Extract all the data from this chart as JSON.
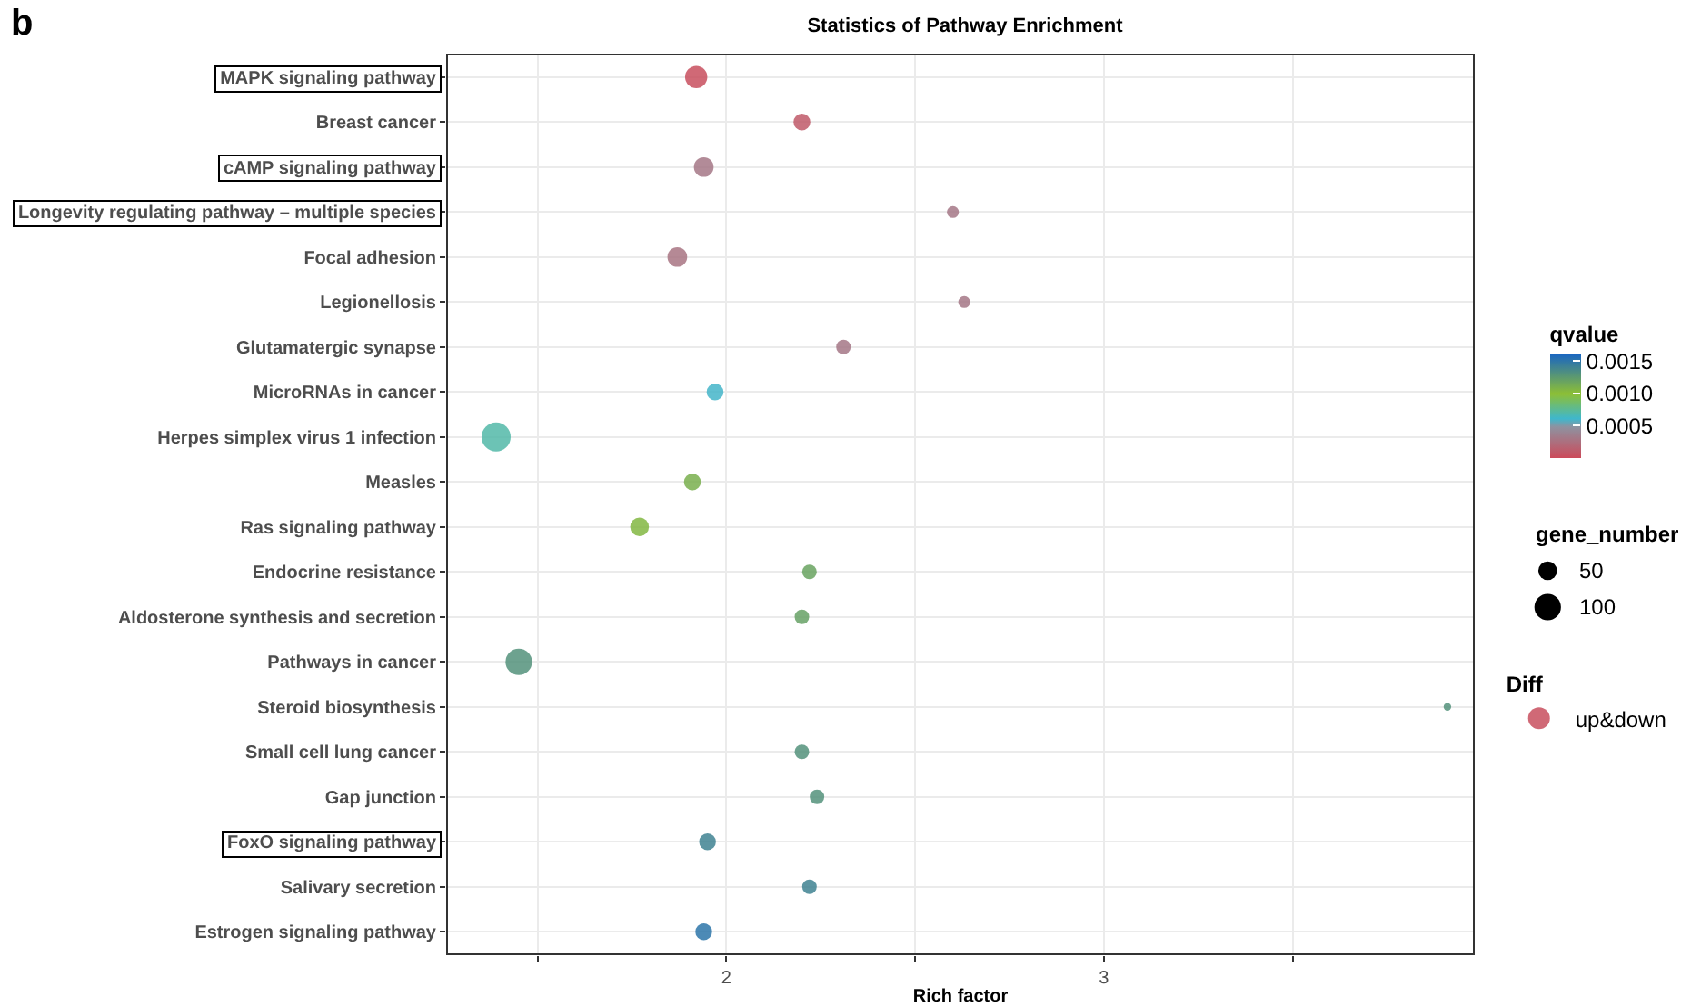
{
  "chart_data": {
    "type": "bubble",
    "orientation": "horizontal",
    "title": "Statistics of Pathway Enrichment",
    "xlabel": "Rich factor",
    "clabel": "qvalue",
    "legend_title": "Diff",
    "annotations": [
      "b",
      "gene_number"
    ],
    "categories": [
      "MAPK signaling pathway",
      "Breast cancer",
      "cAMP signaling pathway",
      "Longevity regulating pathway – multiple species",
      "Focal adhesion",
      "Legionellosis",
      "Glutamatergic synapse",
      "MicroRNAs in cancer",
      "Herpes simplex virus 1 infection",
      "Measles",
      "Ras signaling pathway",
      "Endocrine resistance",
      "Aldosterone synthesis and secretion",
      "Pathways in cancer",
      "Steroid biosynthesis",
      "Small cell lung cancer",
      "Gap junction",
      "FoxO signaling pathway",
      "Salivary secretion",
      "Estrogen signaling pathway"
    ],
    "series": [
      {
        "name": "up&down",
        "values": [
          1.92,
          2.2,
          1.94,
          2.6,
          1.87,
          2.63,
          2.31,
          1.97,
          1.39,
          1.91,
          1.77,
          2.22,
          2.2,
          1.45,
          3.91,
          2.2,
          2.24,
          1.95,
          2.22,
          1.94
        ],
        "sizes": [
          70,
          40,
          55,
          20,
          55,
          20,
          30,
          40,
          120,
          40,
          50,
          30,
          30,
          100,
          8,
          30,
          30,
          40,
          30,
          40
        ],
        "cvalues": [
          3e-05,
          0.0001,
          0.0003,
          0.0003,
          0.00028,
          0.0003,
          0.0003,
          0.0006,
          0.0007,
          0.0011,
          0.00105,
          0.00118,
          0.0012,
          0.0013,
          0.0013,
          0.0013,
          0.0013,
          0.0014,
          0.0014,
          0.0015
        ]
      }
    ],
    "xlim": [
      1.26,
      3.98
    ],
    "xticks": [
      {
        "value": 1.5,
        "label": null
      },
      2,
      {
        "value": 2.5,
        "label": null
      },
      3,
      {
        "value": 3.5,
        "label": null
      }
    ],
    "clim": [
      0,
      0.0016
    ],
    "cticks": [
      {
        "value": 0.0005,
        "label": "0.0005"
      },
      {
        "value": 0.001,
        "label": "0.0010"
      },
      {
        "value": 0.0015,
        "label": "0.0015"
      }
    ],
    "size_legend": [
      50,
      100
    ],
    "grid": true,
    "legend": "right"
  }
}
